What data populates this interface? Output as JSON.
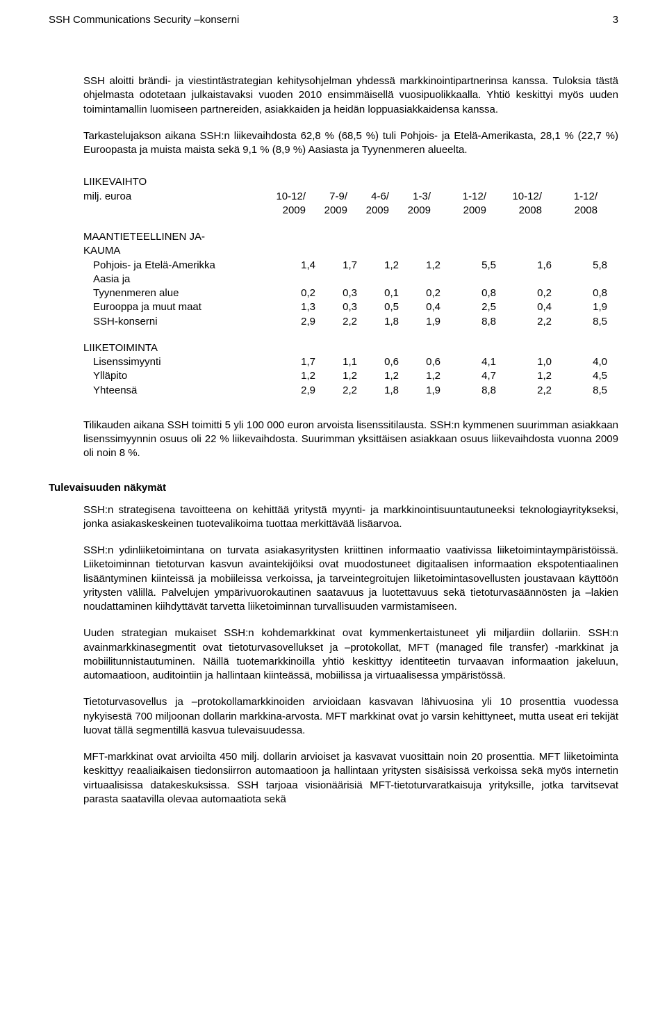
{
  "header": {
    "left": "SSH Communications Security –konserni",
    "page_number": "3"
  },
  "paras": {
    "p1": "SSH aloitti brändi- ja viestintästrategian kehitysohjelman yhdessä markkinointipartnerinsa kanssa. Tuloksia tästä ohjelmasta odotetaan julkaistavaksi vuoden 2010 ensimmäisellä vuosipuolikkaalla. Yhtiö keskittyi myös uuden toimintamallin luomiseen partnereiden, asiakkaiden ja heidän loppuasiakkaidensa kanssa.",
    "p2": "Tarkastelujakson aikana SSH:n liikevaihdosta 62,8 % (68,5 %) tuli Pohjois- ja Etelä-Amerikasta, 28,1 % (22,7 %) Euroopasta ja muista maista sekä 9,1 % (8,9 %) Aasiasta ja Tyynenmeren alueelta.",
    "p3": "Tilikauden aikana SSH toimitti 5 yli 100 000 euron arvoista lisenssitilausta. SSH:n kymmenen suurimman asiakkaan lisenssimyynnin osuus oli 22 % liikevaihdosta. Suurimman yksittäisen asiakkaan osuus liikevaihdosta vuonna 2009 oli noin 8 %.",
    "p4": "SSH:n strategisena tavoitteena on kehittää yritystä myynti- ja markkinointisuuntautuneeksi teknologiayritykseksi, jonka asiakaskeskeinen tuotevalikoima tuottaa merkittävää lisäarvoa.",
    "p5": "SSH:n ydinliiketoimintana on turvata asiakasyritysten kriittinen informaatio vaativissa liiketoimintaympäristöissä. Liiketoiminnan tietoturvan kasvun avaintekijöiksi ovat muodostuneet digitaalisen informaation ekspotentiaalinen lisääntyminen kiinteissä ja mobiileissa verkoissa, ja tarveintegroitujen liiketoimintasovellusten joustavaan käyttöön yritysten välillä. Palvelujen ympärivuorokautinen saatavuus ja luotettavuus sekä tietoturvasäännösten ja –lakien noudattaminen kiihdyttävät tarvetta liiketoiminnan turvallisuuden varmistamiseen.",
    "p6": "Uuden strategian mukaiset SSH:n kohdemarkkinat ovat kymmenkertaistuneet yli miljardiin dollariin. SSH:n avainmarkkinasegmentit ovat tietoturvasovellukset ja –protokollat, MFT (managed file transfer) -markkinat ja mobiilitunnistautuminen. Näillä tuotemarkkinoilla yhtiö keskittyy identiteetin turvaavan informaation jakeluun, automaatioon, auditointiin ja hallintaan kiinteässä, mobiilissa ja virtuaalisessa ympäristössä.",
    "p7": "Tietoturvasovellus ja –protokollamarkkinoiden arvioidaan kasvavan lähivuosina yli 10 prosenttia vuodessa nykyisestä 700 miljoonan dollarin markkina-arvosta. MFT markkinat ovat jo varsin kehittyneet, mutta useat eri tekijät luovat tällä segmentillä kasvua tulevaisuudessa.",
    "p8": "MFT-markkinat ovat arvioilta 450 milj. dollarin arvioiset ja kasvavat vuosittain noin 20 prosenttia. MFT liiketoiminta keskittyy reaaliaikaisen tiedonsiirron automaatioon ja hallintaan yritysten sisäisissä verkoissa sekä myös internetin virtuaalisissa datakeskuksissa. SSH tarjoaa visionäärisiä MFT-tietoturvaratkaisuja yrityksille, jotka tarvitsevat parasta saatavilla olevaa automaatiota sekä"
  },
  "headings": {
    "future": "Tulevaisuuden näkymät"
  },
  "table": {
    "title_line1": "LIIKEVAIHTO",
    "title_line2": "milj. euroa",
    "col_heads_line1": [
      "10-12/",
      "7-9/",
      "4-6/",
      "1-3/",
      "1-12/",
      "10-12/",
      "1-12/"
    ],
    "col_heads_line2": [
      "2009",
      "2009",
      "2009",
      "2009",
      "2009",
      "2008",
      "2008"
    ],
    "geo_heading_l1": "MAANTIETEELLINEN JA-",
    "geo_heading_l2": "KAUMA",
    "rows_geo": [
      {
        "label": "Pohjois- ja Etelä-Amerikka",
        "v": [
          "1,4",
          "1,7",
          "1,2",
          "1,2",
          "5,5",
          "1,6",
          "5,8"
        ]
      },
      {
        "label": "Aasia ja",
        "v": [
          "",
          "",
          "",
          "",
          "",
          "",
          ""
        ]
      },
      {
        "label": "Tyynenmeren alue",
        "v": [
          "0,2",
          "0,3",
          "0,1",
          "0,2",
          "0,8",
          "0,2",
          "0,8"
        ]
      },
      {
        "label": "Eurooppa ja muut maat",
        "v": [
          "1,3",
          "0,3",
          "0,5",
          "0,4",
          "2,5",
          "0,4",
          "1,9"
        ]
      },
      {
        "label": "SSH-konserni",
        "v": [
          "2,9",
          "2,2",
          "1,8",
          "1,9",
          "8,8",
          "2,2",
          "8,5"
        ]
      }
    ],
    "biz_heading": "LIIKETOIMINTA",
    "rows_biz": [
      {
        "label": "Lisenssimyynti",
        "v": [
          "1,7",
          "1,1",
          "0,6",
          "0,6",
          "4,1",
          "1,0",
          "4,0"
        ]
      },
      {
        "label": "Ylläpito",
        "v": [
          "1,2",
          "1,2",
          "1,2",
          "1,2",
          "4,7",
          "1,2",
          "4,5"
        ]
      },
      {
        "label": "Yhteensä",
        "v": [
          "2,9",
          "2,2",
          "1,8",
          "1,9",
          "8,8",
          "2,2",
          "8,5"
        ]
      }
    ]
  }
}
